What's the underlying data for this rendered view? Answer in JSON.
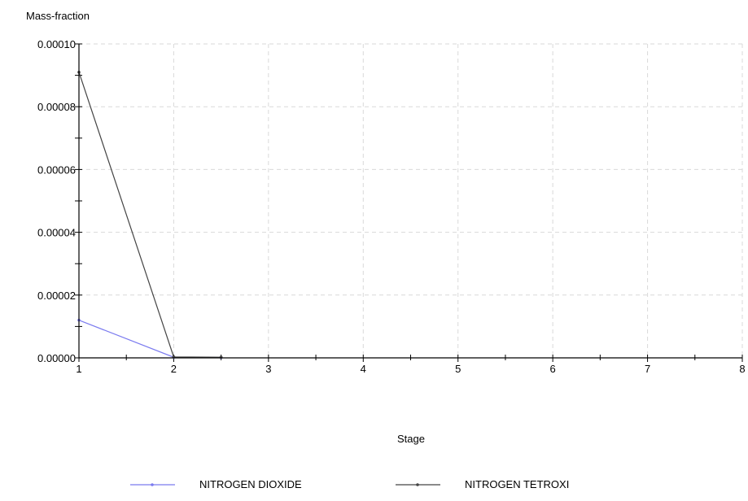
{
  "chart_data": {
    "type": "line",
    "ylabel": "Mass-fraction",
    "xlabel": "Stage",
    "xlim": [
      1,
      8
    ],
    "ylim": [
      0,
      0.0001
    ],
    "x_ticks": [
      1,
      2,
      3,
      4,
      5,
      6,
      7,
      8
    ],
    "x_tick_labels": [
      "1",
      "2",
      "3",
      "4",
      "5",
      "6",
      "7",
      "8"
    ],
    "y_ticks": [
      0,
      2e-05,
      4e-05,
      6e-05,
      8e-05,
      0.0001
    ],
    "y_tick_labels": [
      "0.00000",
      "0.00002",
      "0.00004",
      "0.00006",
      "0.00008",
      "0.00010"
    ],
    "grid": true,
    "legend_position": "bottom",
    "series": [
      {
        "name": "NITROGEN DIOXIDE",
        "color": "#7b7bef",
        "x": [
          1,
          2,
          2.5
        ],
        "y": [
          1.2e-05,
          2e-07,
          1e-07
        ]
      },
      {
        "name": "NITROGEN TETROXI",
        "color": "#444444",
        "x": [
          1,
          2,
          2.5
        ],
        "y": [
          9.1e-05,
          3e-07,
          2e-07
        ]
      }
    ]
  }
}
